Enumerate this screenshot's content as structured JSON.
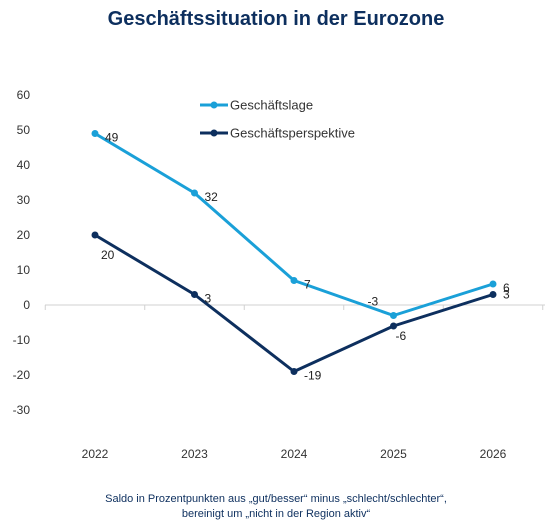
{
  "chart_data": {
    "type": "line",
    "title": "Geschäftssituation in der Eurozone",
    "categories": [
      "2022",
      "2023",
      "2024",
      "2025",
      "2026"
    ],
    "ylim": [
      -30,
      60
    ],
    "yticks": [
      -30,
      -20,
      -10,
      0,
      10,
      20,
      30,
      40,
      50,
      60
    ],
    "grid": false,
    "legend_position": "top-center",
    "series": [
      {
        "name": "Geschäftslage",
        "color": "#1aa0d8",
        "values": [
          49,
          32,
          7,
          -3,
          6
        ]
      },
      {
        "name": "Geschäftsperspektive",
        "color": "#0d2f5e",
        "values": [
          20,
          3,
          -19,
          -6,
          3
        ]
      }
    ],
    "footnote_lines": [
      "Saldo in Prozentpunkten aus „gut/besser“ minus „schlecht/schlechter“,",
      "bereinigt um „nicht in der Region aktiv“"
    ]
  }
}
